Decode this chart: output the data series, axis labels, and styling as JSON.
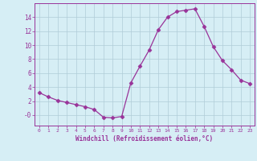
{
  "x": [
    0,
    1,
    2,
    3,
    4,
    5,
    6,
    7,
    8,
    9,
    10,
    11,
    12,
    13,
    14,
    15,
    16,
    17,
    18,
    19,
    20,
    21,
    22,
    23
  ],
  "y": [
    3.2,
    2.6,
    2.1,
    1.8,
    1.5,
    1.2,
    0.8,
    -0.3,
    -0.4,
    -0.2,
    4.6,
    7.0,
    9.3,
    12.2,
    14.0,
    14.8,
    15.0,
    15.2,
    12.7,
    9.8,
    7.8,
    6.5,
    5.0,
    4.5
  ],
  "line_color": "#993399",
  "marker": "D",
  "marker_size": 2.5,
  "xlabel": "Windchill (Refroidissement éolien,°C)",
  "xlim": [
    -0.5,
    23.5
  ],
  "ylim": [
    -1.5,
    16.0
  ],
  "yticks": [
    0,
    2,
    4,
    6,
    8,
    10,
    12,
    14
  ],
  "ytick_labels": [
    "-0",
    "2",
    "4",
    "6",
    "8",
    "10",
    "12",
    "14"
  ],
  "xticks": [
    0,
    1,
    2,
    3,
    4,
    5,
    6,
    7,
    8,
    9,
    10,
    11,
    12,
    13,
    14,
    15,
    16,
    17,
    18,
    19,
    20,
    21,
    22,
    23
  ],
  "bg_color": "#d6eef5",
  "grid_color": "#b0ccd8",
  "axis_color": "#993399",
  "label_color": "#993399",
  "tick_color": "#993399"
}
